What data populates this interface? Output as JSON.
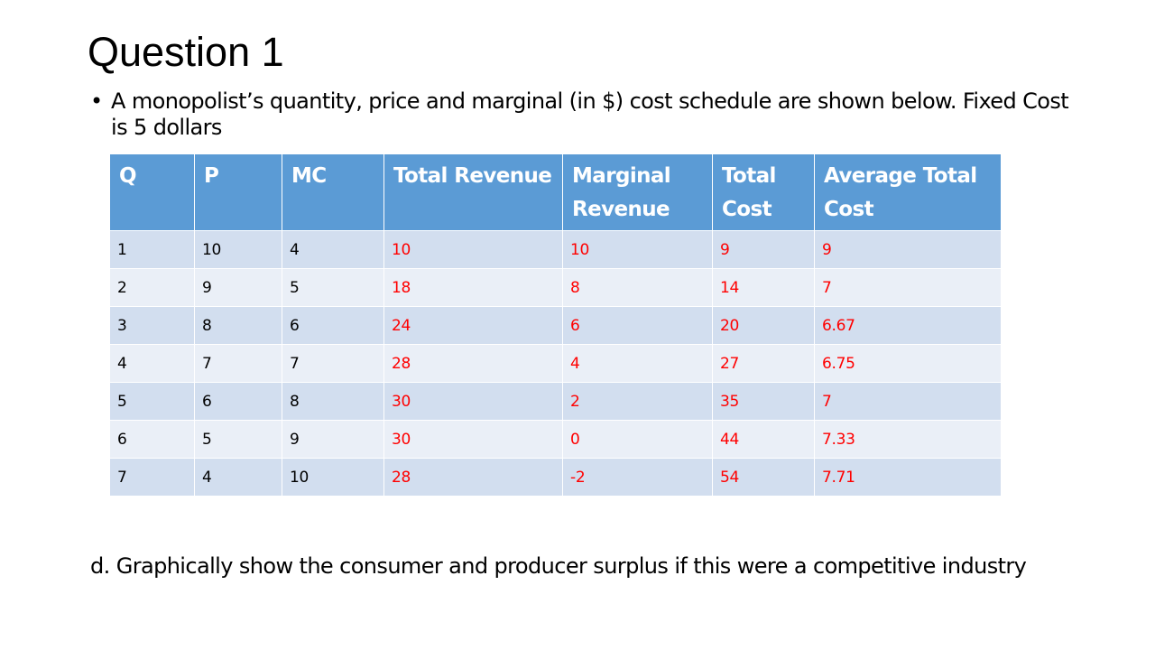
{
  "slide": {
    "title": "Question 1",
    "bullet_symbol": "•",
    "bullet_text": "A monopolist’s quantity, price and marginal (in $) cost schedule are shown below. Fixed Cost is 5 dollars",
    "question_d": "d. Graphically show the consumer and producer surplus if this were a competitive industry"
  },
  "table": {
    "headers": [
      "Q",
      "P",
      "MC",
      "Total Revenue",
      "Marginal Revenue",
      "Total Cost",
      "Average Total Cost"
    ],
    "rows": [
      [
        "1",
        "10",
        "4",
        "10",
        "10",
        "9",
        "9"
      ],
      [
        "2",
        "9",
        "5",
        "18",
        "8",
        "14",
        "7"
      ],
      [
        "3",
        "8",
        "6",
        "24",
        "6",
        "20",
        "6.67"
      ],
      [
        "4",
        "7",
        "7",
        "28",
        "4",
        "27",
        "6.75"
      ],
      [
        "5",
        "6",
        "8",
        "30",
        "2",
        "35",
        "7"
      ],
      [
        "6",
        "5",
        "9",
        "30",
        "0",
        "44",
        "7.33"
      ],
      [
        "7",
        "4",
        "10",
        "28",
        "-2",
        "54",
        "7.71"
      ]
    ],
    "colors": {
      "header_bg": "#5b9bd5",
      "header_text": "#ffffff",
      "row_odd_bg": "#d2deef",
      "row_even_bg": "#eaeff7",
      "given_text": "#000000",
      "computed_text": "#ff0000"
    }
  }
}
